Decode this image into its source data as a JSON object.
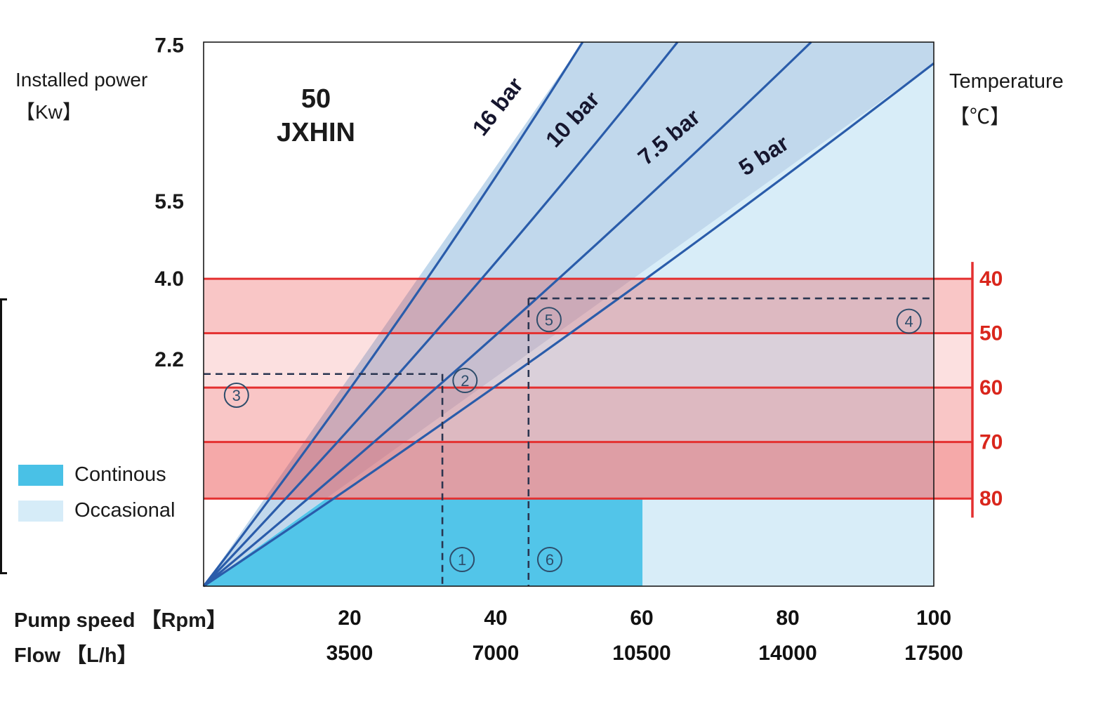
{
  "chart_data": {
    "type": "line",
    "model": {
      "line1": "50",
      "line2": "JXHIN"
    },
    "left_axis": {
      "title_line1": "Installed power",
      "title_line2": "【Kw】",
      "ticks": [
        {
          "label": "7.5",
          "fy": 0.006
        },
        {
          "label": "5.5",
          "fy": 0.293
        },
        {
          "label": "4.0",
          "fy": 0.435
        },
        {
          "label": "2.2",
          "fy": 0.583
        }
      ]
    },
    "temp_axis": {
      "title_line1": "Temperature",
      "title_line2": "【℃】",
      "color": "#d9261c",
      "ticks": [
        {
          "label": "40",
          "fy": 0.435
        },
        {
          "label": "50",
          "fy": 0.535
        },
        {
          "label": "60",
          "fy": 0.635
        },
        {
          "label": "70",
          "fy": 0.735
        },
        {
          "label": "80",
          "fy": 0.839
        }
      ]
    },
    "bottom_axis": {
      "rpm_label": "Pump speed 【Rpm】",
      "flow_label": "Flow 【L/h】",
      "rpm_range": [
        0,
        100
      ],
      "flow_range": [
        0,
        17500
      ],
      "rpm_ticks": [
        {
          "label": "20",
          "fx": 0.2
        },
        {
          "label": "40",
          "fx": 0.4
        },
        {
          "label": "60",
          "fx": 0.6
        },
        {
          "label": "80",
          "fx": 0.8
        },
        {
          "label": "100",
          "fx": 1.0
        }
      ],
      "flow_ticks": [
        {
          "label": "3500",
          "fx": 0.2
        },
        {
          "label": "7000",
          "fx": 0.4
        },
        {
          "label": "10500",
          "fx": 0.6
        },
        {
          "label": "14000",
          "fx": 0.8
        },
        {
          "label": "17500",
          "fx": 1.0
        }
      ]
    },
    "legend": [
      {
        "label": "Continous",
        "color": "#49c1e6"
      },
      {
        "label": "Occasional",
        "color": "#d6ecf8"
      }
    ],
    "curve_color": "#2a5caa",
    "curves": [
      {
        "name": "16 bar",
        "x2": 0.519,
        "y2": 0.0,
        "label_fx": 0.383,
        "label_fy": 0.175,
        "rot": -52
      },
      {
        "name": "10 bar",
        "x2": 0.649,
        "y2": 0.0,
        "label_fx": 0.482,
        "label_fy": 0.196,
        "rot": -47
      },
      {
        "name": "7.5 bar",
        "x2": 0.832,
        "y2": 0.0,
        "label_fx": 0.606,
        "label_fy": 0.228,
        "rot": -40
      },
      {
        "name": "5 bar",
        "x2": 1.0,
        "y2": 0.039,
        "label_fx": 0.742,
        "label_fy": 0.247,
        "rot": -33
      }
    ],
    "regions": {
      "occasional": {
        "points": [
          [
            0,
            1
          ],
          [
            0.519,
            0
          ],
          [
            1,
            0
          ],
          [
            1,
            1
          ]
        ],
        "color": "#d8edf8"
      },
      "fan": {
        "points": [
          [
            0,
            1
          ],
          [
            0.519,
            0
          ],
          [
            1,
            0
          ],
          [
            1,
            0.039
          ]
        ],
        "color": "rgba(85,115,175,0.17)"
      },
      "continuous": {
        "points": [
          [
            0,
            1
          ],
          [
            0.601,
            1
          ],
          [
            0.601,
            0.839
          ],
          [
            0.168,
            0.839
          ]
        ],
        "color": "#52c5e9"
      }
    },
    "band_color": "#e83232",
    "grid_line_color": "#e43030",
    "temp_bands": [
      {
        "range": "40-50",
        "fy1": 0.435,
        "fy2": 0.535,
        "opacity": 0.28
      },
      {
        "range": "50-60",
        "fy1": 0.535,
        "fy2": 0.635,
        "opacity": 0.15
      },
      {
        "range": "60-70",
        "fy1": 0.635,
        "fy2": 0.735,
        "opacity": 0.28
      },
      {
        "range": "70-80",
        "fy1": 0.735,
        "fy2": 0.839,
        "opacity": 0.42
      }
    ],
    "dashed_color": "#2a3550",
    "dashed_lines": [
      {
        "type": "v",
        "fx": 0.327,
        "fy1": 0.61,
        "fy2": 1.0
      },
      {
        "type": "h",
        "fy": 0.61,
        "fx1": 0.0,
        "fx2": 0.327
      },
      {
        "type": "v",
        "fx": 0.445,
        "fy1": 0.471,
        "fy2": 1.0
      },
      {
        "type": "h",
        "fy": 0.471,
        "fx1": 0.445,
        "fx2": 1.0
      }
    ],
    "marker_color": "#2e4d6b",
    "markers": [
      {
        "label": "1",
        "fx": 0.354,
        "fy": 0.951
      },
      {
        "label": "2",
        "fx": 0.358,
        "fy": 0.622
      },
      {
        "label": "3",
        "fx": 0.045,
        "fy": 0.649
      },
      {
        "label": "4",
        "fx": 0.966,
        "fy": 0.513
      },
      {
        "label": "5",
        "fx": 0.473,
        "fy": 0.51
      },
      {
        "label": "6",
        "fx": 0.474,
        "fy": 0.951
      }
    ]
  }
}
